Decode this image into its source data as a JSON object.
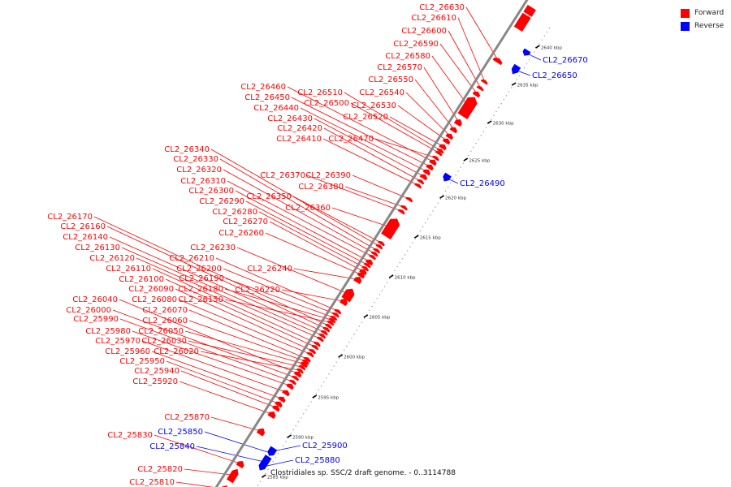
{
  "colors": {
    "forward": "#ff0000",
    "reverse": "#0000ff",
    "axis": "#888888",
    "text": "#222222"
  },
  "legend": [
    {
      "label": "Forward",
      "color": "#ff0000"
    },
    {
      "label": "Reverse",
      "color": "#0000ff"
    }
  ],
  "caption": "Clostridiales sp. SSC/2 draft genome. - 0..3114788",
  "scale": {
    "unit_label": "kbp",
    "ticks": [
      2585,
      2590,
      2595,
      2600,
      2605,
      2610,
      2615,
      2620,
      2625,
      2630,
      2635,
      2640
    ]
  },
  "genes": [
    {
      "name": "CL2_25810",
      "strand": "forward"
    },
    {
      "name": "CL2_25820",
      "strand": "forward"
    },
    {
      "name": "CL2_25830",
      "strand": "forward"
    },
    {
      "name": "CL2_25840",
      "strand": "reverse"
    },
    {
      "name": "CL2_25850",
      "strand": "reverse"
    },
    {
      "name": "CL2_25870",
      "strand": "forward"
    },
    {
      "name": "CL2_25880",
      "strand": "reverse"
    },
    {
      "name": "CL2_25900",
      "strand": "reverse"
    },
    {
      "name": "CL2_25920",
      "strand": "forward"
    },
    {
      "name": "CL2_25940",
      "strand": "forward"
    },
    {
      "name": "CL2_25950",
      "strand": "forward"
    },
    {
      "name": "CL2_25960",
      "strand": "forward"
    },
    {
      "name": "CL2_25970",
      "strand": "forward"
    },
    {
      "name": "CL2_25980",
      "strand": "forward"
    },
    {
      "name": "CL2_25990",
      "strand": "forward"
    },
    {
      "name": "CL2_26000",
      "strand": "forward"
    },
    {
      "name": "CL2_26040",
      "strand": "forward"
    },
    {
      "name": "CL2_26020",
      "strand": "forward"
    },
    {
      "name": "CL2_26030",
      "strand": "forward"
    },
    {
      "name": "CL2_26050",
      "strand": "forward"
    },
    {
      "name": "CL2_26060",
      "strand": "forward"
    },
    {
      "name": "CL2_26070",
      "strand": "forward"
    },
    {
      "name": "CL2_26080",
      "strand": "forward"
    },
    {
      "name": "CL2_26090",
      "strand": "forward"
    },
    {
      "name": "CL2_26100",
      "strand": "forward"
    },
    {
      "name": "CL2_26110",
      "strand": "forward"
    },
    {
      "name": "CL2_26120",
      "strand": "forward"
    },
    {
      "name": "CL2_26130",
      "strand": "forward"
    },
    {
      "name": "CL2_26140",
      "strand": "forward"
    },
    {
      "name": "CL2_26160",
      "strand": "forward"
    },
    {
      "name": "CL2_26170",
      "strand": "forward"
    },
    {
      "name": "CL2_26150",
      "strand": "forward"
    },
    {
      "name": "CL2_26180",
      "strand": "forward"
    },
    {
      "name": "CL2_26190",
      "strand": "forward"
    },
    {
      "name": "CL2_26200",
      "strand": "forward"
    },
    {
      "name": "CL2_26210",
      "strand": "forward"
    },
    {
      "name": "CL2_26220",
      "strand": "forward"
    },
    {
      "name": "CL2_26230",
      "strand": "forward"
    },
    {
      "name": "CL2_26240",
      "strand": "forward"
    },
    {
      "name": "CL2_26260",
      "strand": "forward"
    },
    {
      "name": "CL2_26270",
      "strand": "forward"
    },
    {
      "name": "CL2_26280",
      "strand": "forward"
    },
    {
      "name": "CL2_26290",
      "strand": "forward"
    },
    {
      "name": "CL2_26300",
      "strand": "forward"
    },
    {
      "name": "CL2_26310",
      "strand": "forward"
    },
    {
      "name": "CL2_26320",
      "strand": "forward"
    },
    {
      "name": "CL2_26330",
      "strand": "forward"
    },
    {
      "name": "CL2_26340",
      "strand": "forward"
    },
    {
      "name": "CL2_26350",
      "strand": "forward"
    },
    {
      "name": "CL2_26360",
      "strand": "forward"
    },
    {
      "name": "CL2_26370",
      "strand": "forward"
    },
    {
      "name": "CL2_26380",
      "strand": "forward"
    },
    {
      "name": "CL2_26390",
      "strand": "forward"
    },
    {
      "name": "CL2_26410",
      "strand": "forward"
    },
    {
      "name": "CL2_26420",
      "strand": "forward"
    },
    {
      "name": "CL2_26430",
      "strand": "forward"
    },
    {
      "name": "CL2_26440",
      "strand": "forward"
    },
    {
      "name": "CL2_26450",
      "strand": "forward"
    },
    {
      "name": "CL2_26460",
      "strand": "forward"
    },
    {
      "name": "CL2_26470",
      "strand": "forward"
    },
    {
      "name": "CL2_26490",
      "strand": "reverse"
    },
    {
      "name": "CL2_26500",
      "strand": "forward"
    },
    {
      "name": "CL2_26510",
      "strand": "forward"
    },
    {
      "name": "CL2_26520",
      "strand": "forward"
    },
    {
      "name": "CL2_26530",
      "strand": "forward"
    },
    {
      "name": "CL2_26540",
      "strand": "forward"
    },
    {
      "name": "CL2_26550",
      "strand": "forward"
    },
    {
      "name": "CL2_26570",
      "strand": "forward"
    },
    {
      "name": "CL2_26580",
      "strand": "forward"
    },
    {
      "name": "CL2_26590",
      "strand": "forward"
    },
    {
      "name": "CL2_26600",
      "strand": "forward"
    },
    {
      "name": "CL2_26610",
      "strand": "forward"
    },
    {
      "name": "CL2_26630",
      "strand": "forward"
    },
    {
      "name": "CL2_26650",
      "strand": "reverse"
    },
    {
      "name": "CL2_26670",
      "strand": "reverse"
    }
  ]
}
